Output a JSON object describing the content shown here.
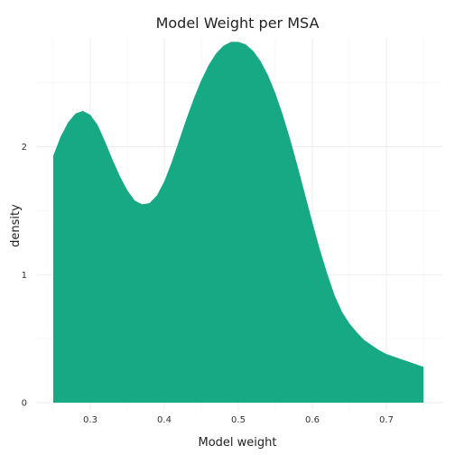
{
  "chart_data": {
    "type": "area",
    "title": "Model Weight per MSA",
    "xlabel": "Model weight",
    "ylabel": "density",
    "xlim": [
      0.25,
      0.75
    ],
    "ylim": [
      0,
      2.8
    ],
    "x_ticks": [
      "0.3",
      "0.4",
      "0.5",
      "0.6",
      "0.7"
    ],
    "y_ticks": [
      "0",
      "1",
      "2"
    ],
    "grid": true,
    "fill_color": "#17a884",
    "series": [
      {
        "x": [
          0.25,
          0.26,
          0.27,
          0.28,
          0.29,
          0.3,
          0.31,
          0.32,
          0.33,
          0.34,
          0.35,
          0.36,
          0.37,
          0.38,
          0.39,
          0.4,
          0.41,
          0.42,
          0.43,
          0.44,
          0.45,
          0.46,
          0.47,
          0.48,
          0.49,
          0.5,
          0.51,
          0.52,
          0.53,
          0.54,
          0.55,
          0.56,
          0.57,
          0.58,
          0.59,
          0.6,
          0.61,
          0.62,
          0.63,
          0.64,
          0.65,
          0.66,
          0.67,
          0.68,
          0.69,
          0.7,
          0.71,
          0.72,
          0.73,
          0.74,
          0.75
        ],
        "y": [
          1.93,
          2.08,
          2.19,
          2.26,
          2.28,
          2.25,
          2.17,
          2.04,
          1.9,
          1.77,
          1.66,
          1.58,
          1.55,
          1.56,
          1.62,
          1.73,
          1.88,
          2.05,
          2.22,
          2.38,
          2.52,
          2.64,
          2.73,
          2.79,
          2.82,
          2.82,
          2.8,
          2.75,
          2.67,
          2.56,
          2.42,
          2.25,
          2.06,
          1.85,
          1.63,
          1.41,
          1.2,
          1.01,
          0.84,
          0.71,
          0.62,
          0.55,
          0.49,
          0.45,
          0.41,
          0.38,
          0.36,
          0.34,
          0.32,
          0.3,
          0.28
        ]
      }
    ]
  }
}
